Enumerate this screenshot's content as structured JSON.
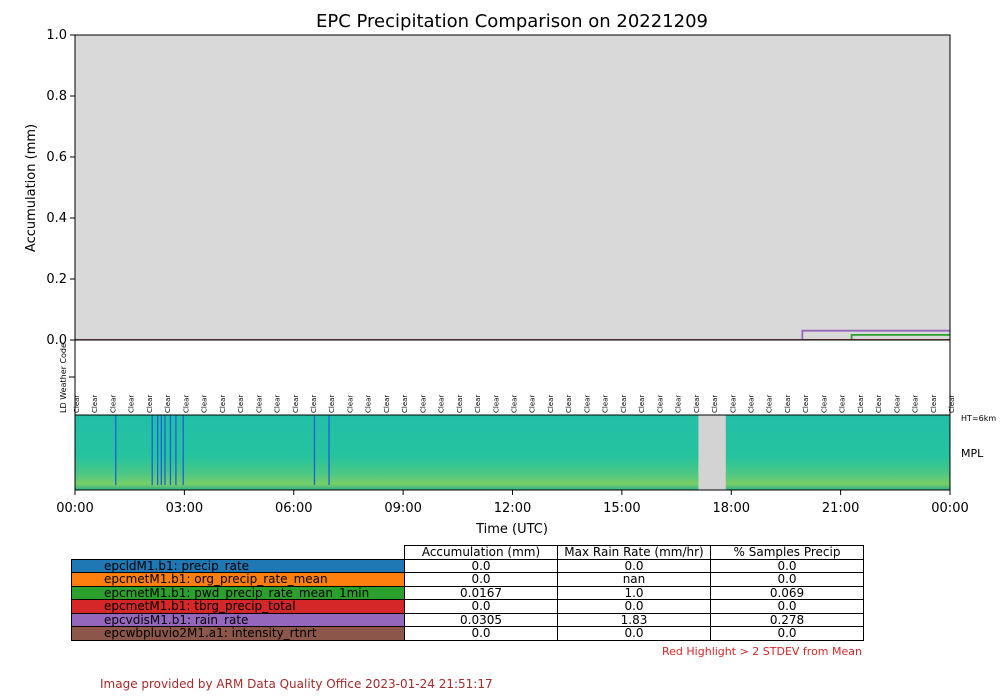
{
  "chart_data": [
    {
      "type": "line",
      "title": "EPC Precipitation Comparison on 20221209",
      "ylabel": "Accumulation (mm)",
      "xlabel": "Time (UTC)",
      "xlim_hours": [
        0,
        24
      ],
      "ylim": [
        0,
        1.0
      ],
      "yticks": [
        "0.0",
        "0.2",
        "0.4",
        "0.6",
        "0.8",
        "1.0"
      ],
      "xticks": [
        "00:00",
        "03:00",
        "06:00",
        "09:00",
        "12:00",
        "15:00",
        "18:00",
        "21:00",
        "00:00"
      ],
      "background": "#d9d9d9",
      "grid": false,
      "series": [
        {
          "name": "epcldM1.b1: precip_rate",
          "color": "#1f77b4",
          "x": [
            0,
            24
          ],
          "y": [
            0,
            0
          ]
        },
        {
          "name": "epcmetM1.b1: org_precip_rate_mean",
          "color": "#ff7f0e",
          "x": [
            0,
            24
          ],
          "y": [
            0,
            0
          ]
        },
        {
          "name": "epcmetM1.b1: pwd_precip_rate_mean_1min",
          "color": "#2ca02c",
          "x": [
            0,
            21.3,
            21.3,
            24
          ],
          "y": [
            0,
            0,
            0.0167,
            0.0167
          ]
        },
        {
          "name": "epcmetM1.b1: tbrg_precip_total",
          "color": "#d62728",
          "x": [
            0,
            24
          ],
          "y": [
            0,
            0
          ]
        },
        {
          "name": "epcvdisM1.b1: rain_rate",
          "color": "#9467bd",
          "x": [
            0,
            19.95,
            19.95,
            24
          ],
          "y": [
            0,
            0,
            0.0305,
            0.0305
          ]
        },
        {
          "name": "epcwbpluvio2M1.a1: intensity_rtnrt",
          "color": "#8c564b",
          "x": [
            0,
            24
          ],
          "y": [
            0,
            0
          ]
        }
      ]
    },
    {
      "type": "table",
      "ylabel": "LD Weather Code",
      "codes": [
        "Clear",
        "Clear",
        "Clear",
        "Clear",
        "Clear",
        "Clear",
        "Clear",
        "Clear",
        "Clear",
        "Clear",
        "Clear",
        "Clear",
        "Clear",
        "Clear",
        "Clear",
        "Clear",
        "Clear",
        "Clear",
        "Clear",
        "Clear",
        "Clear",
        "Clear",
        "Clear",
        "Clear",
        "Clear",
        "Clear",
        "Clear",
        "Clear",
        "Clear",
        "Clear",
        "Clear",
        "Clear",
        "Clear",
        "Clear",
        "Clear",
        "Clear",
        "Clear",
        "Clear",
        "Clear",
        "Clear",
        "Clear",
        "Clear",
        "Clear",
        "Clear",
        "Clear",
        "Clear",
        "Clear",
        "Clear",
        "Clear"
      ]
    },
    {
      "type": "heatmap",
      "label": "MPL",
      "height_label": "HT=6km",
      "gap_hours": [
        17.1,
        17.85
      ],
      "streak_hours": [
        1.1,
        2.1,
        2.25,
        2.35,
        2.45,
        2.6,
        2.75,
        2.95,
        6.55,
        6.95
      ]
    }
  ],
  "table": {
    "headers": [
      "Accumulation (mm)",
      "Max Rain Rate (mm/hr)",
      "% Samples Precip"
    ],
    "rows": [
      {
        "label": "epcldM1.b1: precip_rate",
        "color": "#1f77b4",
        "values": [
          "0.0",
          "0.0",
          "0.0"
        ]
      },
      {
        "label": "epcmetM1.b1: org_precip_rate_mean",
        "color": "#ff7f0e",
        "values": [
          "0.0",
          "nan",
          "0.0"
        ]
      },
      {
        "label": "epcmetM1.b1: pwd_precip_rate_mean_1min",
        "color": "#2ca02c",
        "values": [
          "0.0167",
          "1.0",
          "0.069"
        ]
      },
      {
        "label": "epcmetM1.b1: tbrg_precip_total",
        "color": "#d62728",
        "values": [
          "0.0",
          "0.0",
          "0.0"
        ]
      },
      {
        "label": "epcvdisM1.b1: rain_rate",
        "color": "#9467bd",
        "values": [
          "0.0305",
          "1.83",
          "0.278"
        ]
      },
      {
        "label": "epcwbpluvio2M1.a1: intensity_rtnrt",
        "color": "#8c564b",
        "values": [
          "0.0",
          "0.0",
          "0.0"
        ]
      }
    ]
  },
  "notes": {
    "red_highlight": "Red Highlight > 2 STDEV from Mean",
    "credit": "Image provided by ARM Data Quality Office 2023-01-24 21:51:17"
  }
}
